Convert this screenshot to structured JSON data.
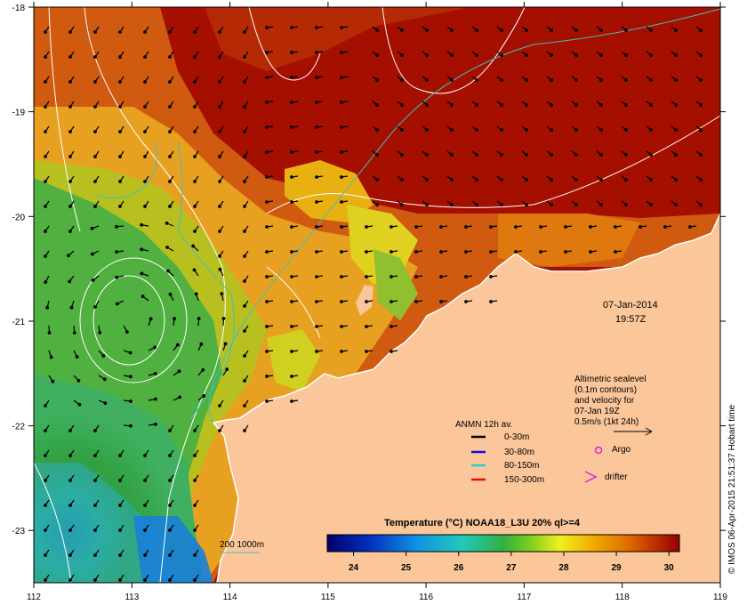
{
  "map": {
    "lon_ticks": [
      "112",
      "113",
      "114",
      "115",
      "116",
      "117",
      "118",
      "119"
    ],
    "lat_ticks": [
      "-18",
      "-19",
      "-20",
      "-21",
      "-22",
      "-23"
    ],
    "date": "07-Jan-2014",
    "time": "19:57Z",
    "altimetry_note": [
      "Altimetric sealevel",
      "(0.1m contours)",
      "and velocity for",
      "07-Jan 19Z",
      "0.5m/s (1kt 24h)"
    ],
    "legend": {
      "title": "ANMN 12h av.",
      "items": [
        {
          "label": "0-30m",
          "color": "#000000"
        },
        {
          "label": "30-80m",
          "color": "#1010e0"
        },
        {
          "label": "80-150m",
          "color": "#20d0d0"
        },
        {
          "label": "150-300m",
          "color": "#e01010"
        }
      ]
    },
    "markers": {
      "argo": "Argo",
      "drifter": "drifter"
    },
    "isobath_label": "200  1000m",
    "colorbar": {
      "title": "Temperature (°C) NOAA18_L3U 20% ql>=4",
      "ticks": [
        "24",
        "25",
        "26",
        "27",
        "28",
        "29",
        "30"
      ],
      "range": [
        23.5,
        30.2
      ]
    },
    "credit": "© IMOS 06-Apr-2015 21:51:37 Hobart time",
    "colors": {
      "land": "#fbc699",
      "hot": "#a50f00",
      "warm": "#cf5a10",
      "mid": "#e8a020",
      "yellow": "#e0e020",
      "green": "#40b040",
      "cool": "#30b0a0",
      "contour": "#ffffff",
      "isobath": "#40c0c0"
    }
  }
}
